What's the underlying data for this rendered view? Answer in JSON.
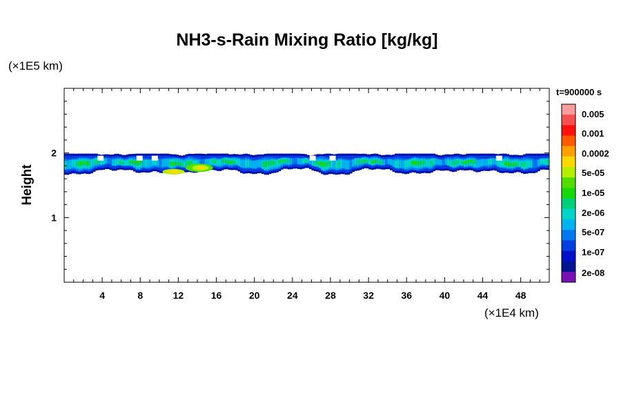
{
  "chart_data": {
    "type": "heatmap",
    "title": "NH3-s-Rain Mixing Ratio [kg/kg]",
    "ylabel": "Height",
    "x_unit": "(×1E4 km)",
    "y_unit": "(×1E5 km)",
    "time_label": "t=900000 s",
    "xlim": [
      0,
      51
    ],
    "ylim": [
      0,
      3
    ],
    "x_ticks": [
      4,
      8,
      12,
      16,
      20,
      24,
      28,
      32,
      36,
      40,
      44,
      48
    ],
    "y_ticks": [
      1,
      2
    ],
    "layer": {
      "base": 1.68,
      "top": 2.0
    },
    "colorbar": {
      "labels": [
        "0.005",
        "0.001",
        "0.0002",
        "5e-05",
        "1e-05",
        "2e-06",
        "5e-07",
        "1e-07",
        "2e-08"
      ],
      "colors": [
        "#f99c9c",
        "#f75050",
        "#ff1010",
        "#ff5a00",
        "#ffa000",
        "#ffd800",
        "#b4ee00",
        "#52dc00",
        "#18d80a",
        "#00d07a",
        "#00d6c8",
        "#00b4f0",
        "#0078f0",
        "#0040e0",
        "#0010c8",
        "#001490",
        "#7810b4"
      ]
    }
  }
}
